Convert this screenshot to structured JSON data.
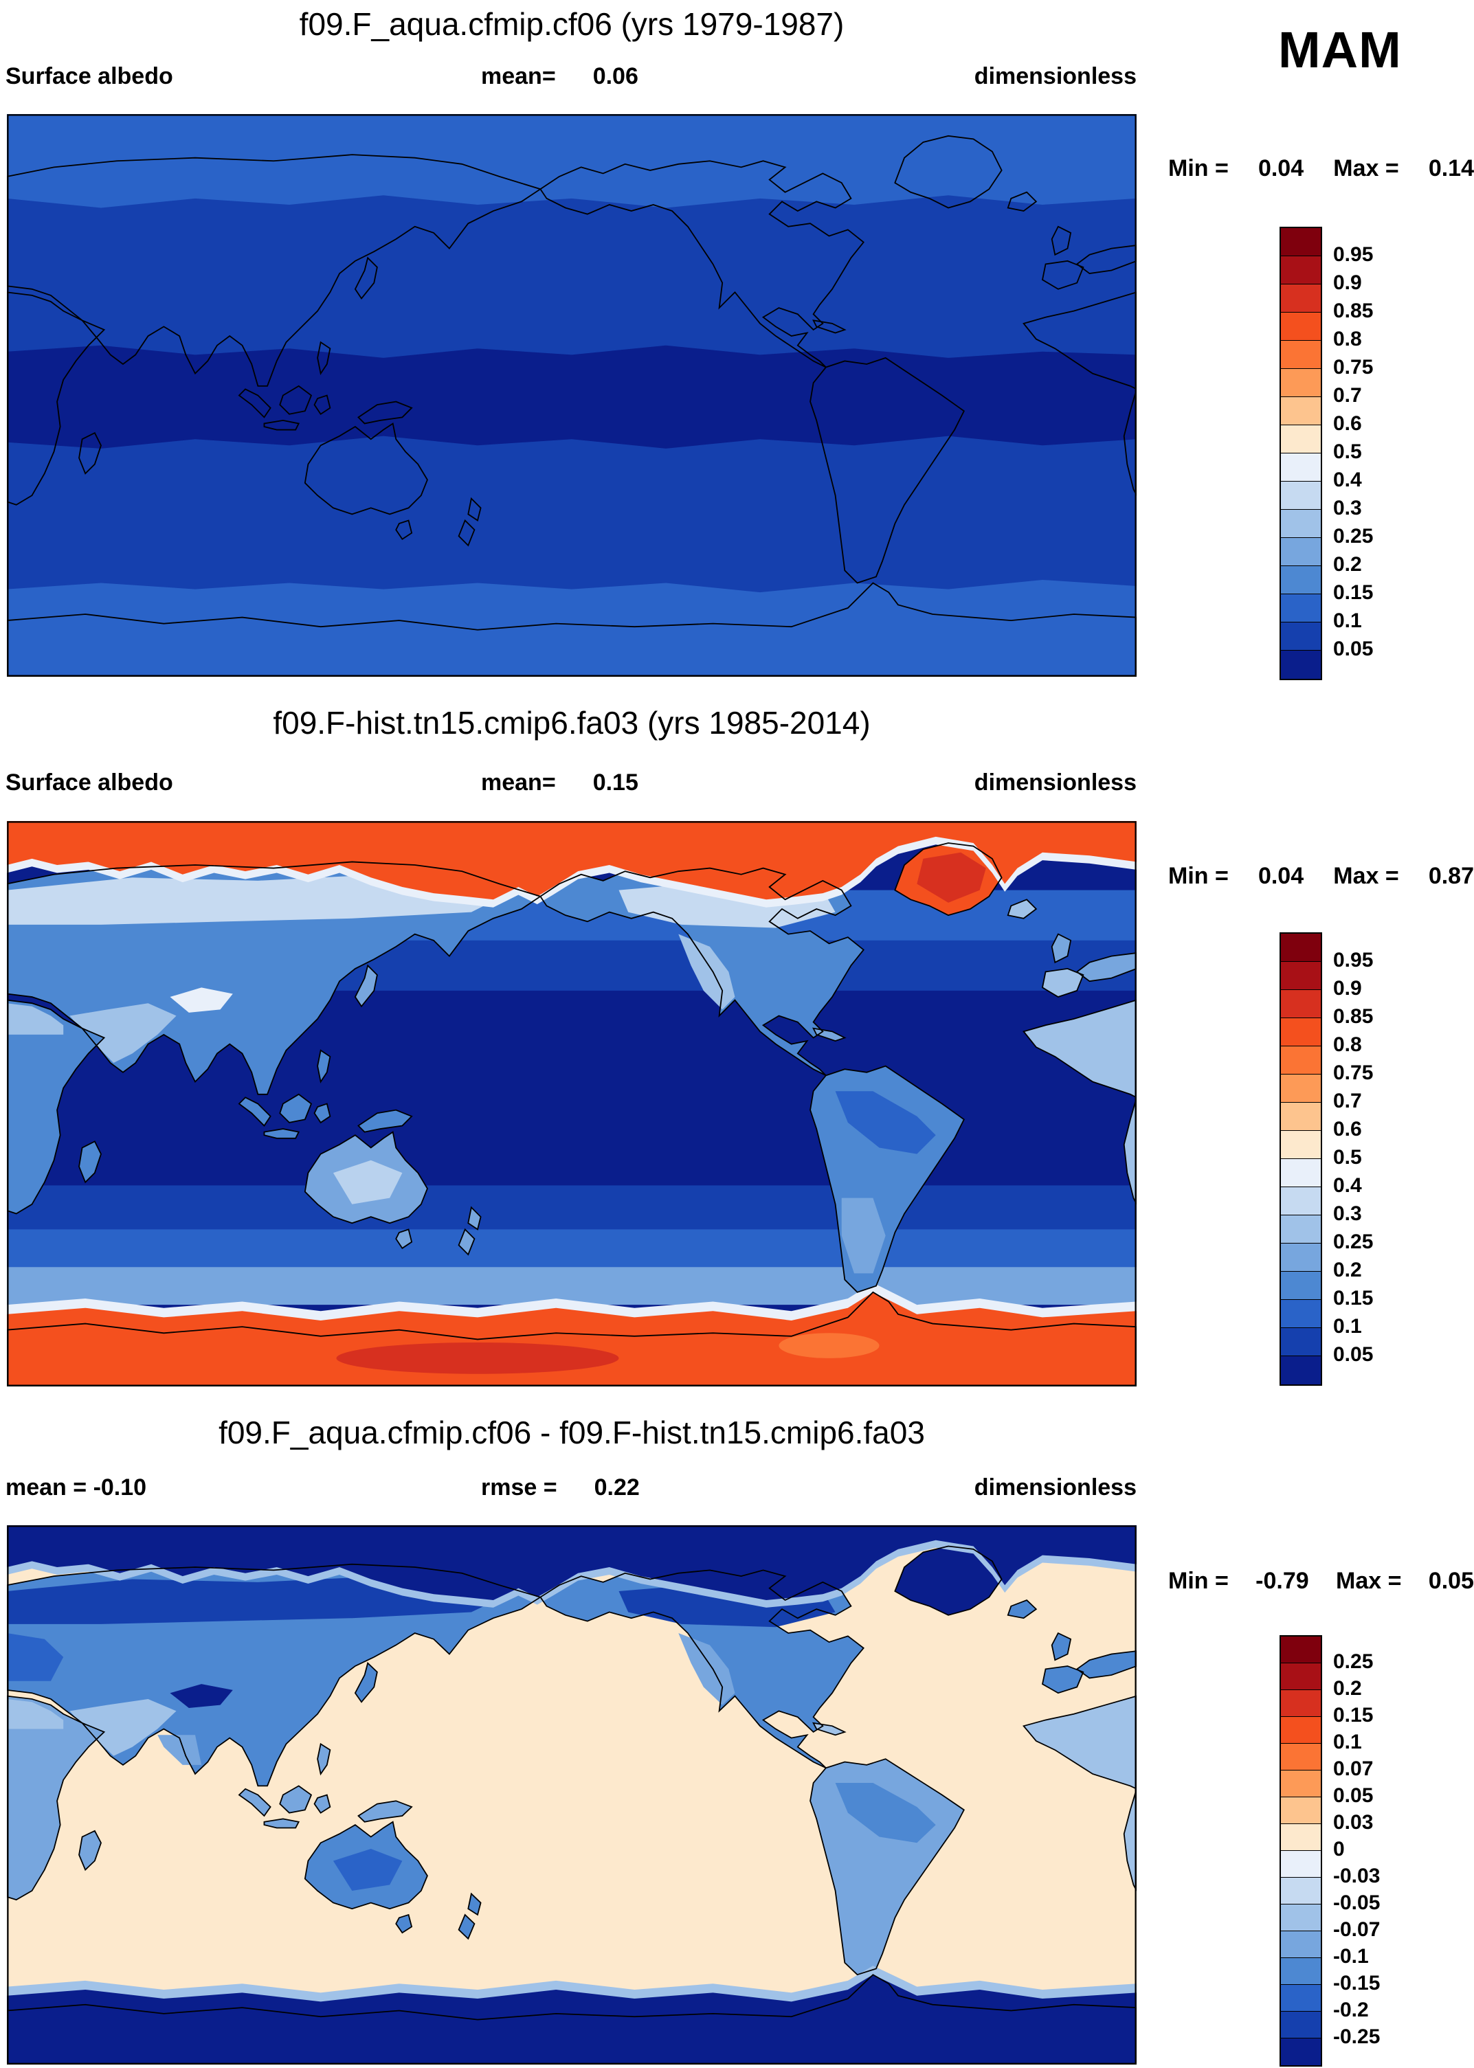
{
  "season": "MAM",
  "palette": [
    "#7f000d",
    "#a81016",
    "#d7301f",
    "#f4501e",
    "#fb7434",
    "#fd9a57",
    "#fdc48e",
    "#fde9cd",
    "#e9f0fa",
    "#c6daf1",
    "#a0c2e8",
    "#77a6de",
    "#4d88d2",
    "#2a63c8",
    "#1540ae",
    "#0a1e8c"
  ],
  "panels": [
    {
      "title": "f09.F_aqua.cfmip.cf06 (yrs 1979-1987)",
      "row": {
        "left": "Surface albedo",
        "center_label": "mean=",
        "center_value": "0.06",
        "right": "dimensionless"
      },
      "minmax": {
        "min_label": "Min =",
        "min_value": "0.04",
        "max_label": "Max =",
        "max_value": "0.14"
      },
      "colorbar_ticks": [
        "0.95",
        "0.9",
        "0.85",
        "0.8",
        "0.75",
        "0.7",
        "0.6",
        "0.5",
        "0.4",
        "0.3",
        "0.25",
        "0.2",
        "0.15",
        "0.1",
        "0.05"
      ]
    },
    {
      "title": "f09.F-hist.tn15.cmip6.fa03 (yrs 1985-2014)",
      "row": {
        "left": "Surface albedo",
        "center_label": "mean=",
        "center_value": "0.15",
        "right": "dimensionless"
      },
      "minmax": {
        "min_label": "Min =",
        "min_value": "0.04",
        "max_label": "Max =",
        "max_value": "0.87"
      },
      "colorbar_ticks": [
        "0.95",
        "0.9",
        "0.85",
        "0.8",
        "0.75",
        "0.7",
        "0.6",
        "0.5",
        "0.4",
        "0.3",
        "0.25",
        "0.2",
        "0.15",
        "0.1",
        "0.05"
      ]
    },
    {
      "title": "f09.F_aqua.cfmip.cf06 - f09.F-hist.tn15.cmip6.fa03",
      "row": {
        "left": "mean = -0.10",
        "center_label": "rmse =",
        "center_value": "0.22",
        "right": "dimensionless"
      },
      "minmax": {
        "min_label": "Min =",
        "min_value": "-0.79",
        "max_label": "Max =",
        "max_value": "0.05"
      },
      "colorbar_ticks": [
        "0.25",
        "0.2",
        "0.15",
        "0.1",
        "0.07",
        "0.05",
        "0.03",
        "0",
        "-0.03",
        "-0.05",
        "-0.07",
        "-0.1",
        "-0.15",
        "-0.2",
        "-0.25"
      ]
    }
  ],
  "chart_data": {
    "type": "heatmap",
    "subtype": "global lat-lon filled-contour maps, equirectangular, Pacific-centered",
    "season": "MAM",
    "variable": "Surface albedo",
    "units": "dimensionless",
    "colorbar_levels_abs": [
      0.05,
      0.1,
      0.15,
      0.2,
      0.25,
      0.3,
      0.4,
      0.5,
      0.6,
      0.7,
      0.75,
      0.8,
      0.85,
      0.9,
      0.95
    ],
    "colorbar_levels_diff": [
      -0.25,
      -0.2,
      -0.15,
      -0.1,
      -0.07,
      -0.05,
      -0.03,
      0,
      0.03,
      0.05,
      0.07,
      0.1,
      0.15,
      0.2,
      0.25
    ],
    "legend_position": "right of each map, vertical discrete colorbar, blue-to-red diverging",
    "panels": [
      {
        "name": "f09.F_aqua.cfmip.cf06",
        "years": "1979-1987",
        "mean": 0.06,
        "min": 0.04,
        "max": 0.14,
        "description": "Aqua-planet run: zonally uniform ocean albedo; ~0.04-0.05 (darkest navy) in the tropics, 0.05-0.1 in mid-latitudes, rising to 0.1-0.15 (medium blue) poleward of ~60 deg; coastlines overlaid for reference only."
      },
      {
        "name": "f09.F-hist.tn15.cmip6.fa03",
        "years": "1985-2014",
        "mean": 0.15,
        "min": 0.04,
        "max": 0.87,
        "description": "Historical run: ice-free ocean <0.05 (dark navy) in tropics, 0.05-0.15 at higher latitudes; land 0.1-0.3 (light blues), deserts and Tibet 0.3-0.6 (pale/white); Arctic sea ice, Greenland and Antarctica 0.75-0.9 (orange-red)."
      },
      {
        "name": "difference",
        "expr": "f09.F_aqua.cfmip.cf06 - f09.F-hist.tn15.cmip6.fa03",
        "mean": -0.1,
        "rmse": 0.22,
        "min": -0.79,
        "max": 0.05,
        "description": "Aqua minus historical: near zero to +0.05 (cream) over ice-free ocean; -0.03 to -0.25 (blues) over land; large negative values down to -0.79 (dark navy) over Arctic, Greenland, Antarctic ice/snow."
      }
    ]
  }
}
